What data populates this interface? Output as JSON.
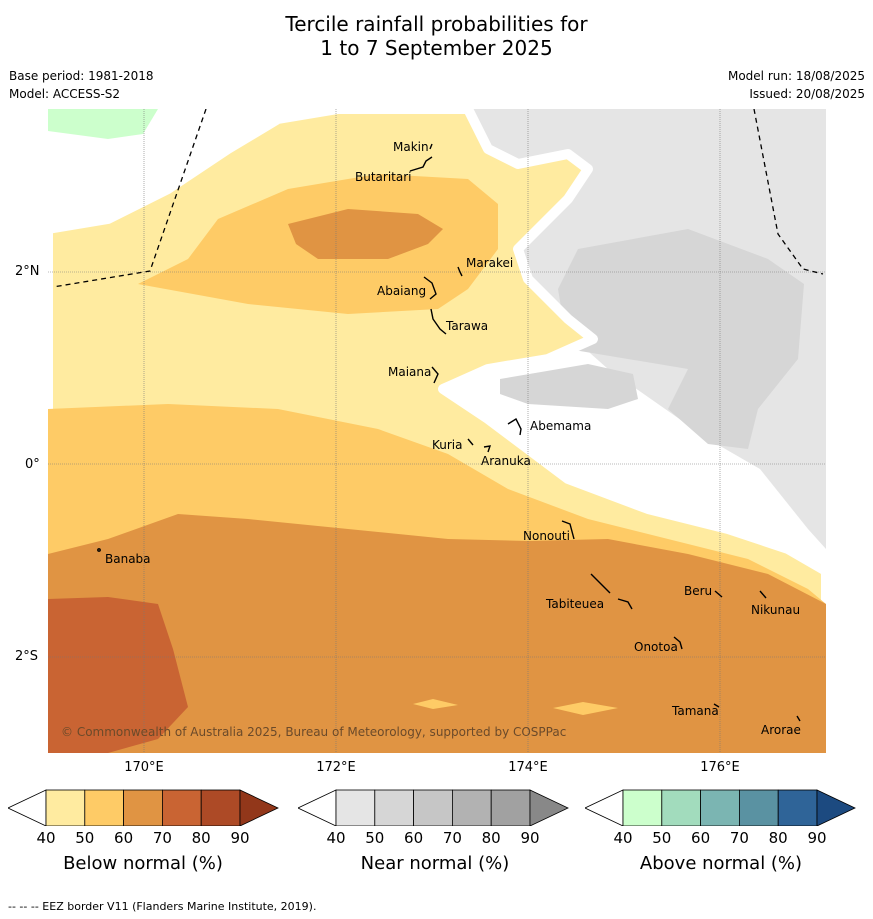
{
  "title": {
    "line1": "Tercile rainfall probabilities for",
    "line2": "1 to 7 September 2025"
  },
  "meta": {
    "base_period": "Base period: 1981-2018",
    "model": "Model: ACCESS-S2",
    "model_run": "Model run: 18/08/2025",
    "issued": "Issued: 20/08/2025"
  },
  "map": {
    "latitude_labels": [
      "2°N",
      "0°",
      "2°S"
    ],
    "longitude_labels": [
      "170°E",
      "172°E",
      "174°E",
      "176°E"
    ],
    "islands": [
      "Makin",
      "Butaritari",
      "Marakei",
      "Abaiang",
      "Tarawa",
      "Maiana",
      "Abemama",
      "Kuria",
      "Aranuka",
      "Nonouti",
      "Banaba",
      "Tabiteuea",
      "Beru",
      "Nikunau",
      "Onotoa",
      "Tamana",
      "Arorae"
    ],
    "copyright": "© Commonwealth of Australia 2025, Bureau of Meteorology, supported by COSPPac",
    "colors": {
      "below_40": "#ffeba0",
      "below_50": "#fecb66",
      "below_60": "#e09443",
      "below_70": "#c96433",
      "near_40": "#e5e5e5",
      "near_50": "#d6d6d6",
      "above_40": "#ccffcc"
    }
  },
  "colorbars": [
    {
      "label": "Below normal (%)",
      "ticks": [
        "40",
        "50",
        "60",
        "70",
        "80",
        "90"
      ],
      "colors": [
        "#ffeba0",
        "#fecb66",
        "#e09443",
        "#c96433",
        "#ad4a26",
        "#92371a"
      ]
    },
    {
      "label": "Near normal (%)",
      "ticks": [
        "40",
        "50",
        "60",
        "70",
        "80",
        "90"
      ],
      "colors": [
        "#e5e5e5",
        "#d6d6d6",
        "#c6c6c6",
        "#b2b2b2",
        "#a1a1a1",
        "#888888"
      ]
    },
    {
      "label": "Above normal (%)",
      "ticks": [
        "40",
        "50",
        "60",
        "70",
        "80",
        "90"
      ],
      "colors": [
        "#ccffcc",
        "#a2dcbd",
        "#7bb5b2",
        "#5a92a2",
        "#2f6498",
        "#1c4a80"
      ]
    }
  ],
  "footer": "--  --  -- EEZ border V11 (Flanders Marine Institute, 2019)."
}
